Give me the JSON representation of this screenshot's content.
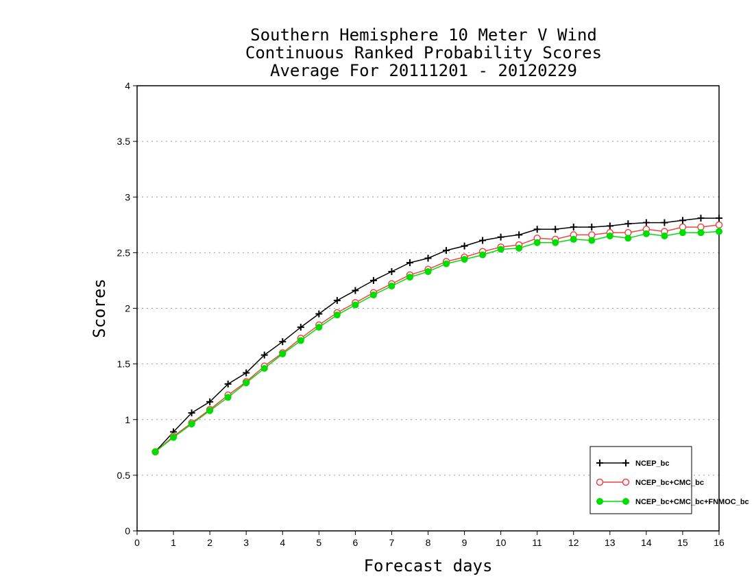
{
  "chart_data": {
    "type": "line",
    "title": [
      "Southern Hemisphere 10 Meter V Wind",
      "Continuous Ranked Probability Scores",
      "Average For 20111201 - 20120229"
    ],
    "xlabel": "Forecast days",
    "ylabel": "Scores",
    "xlim": [
      0,
      16
    ],
    "ylim": [
      0,
      4
    ],
    "xticks": [
      0,
      1,
      2,
      3,
      4,
      5,
      6,
      7,
      8,
      9,
      10,
      11,
      12,
      13,
      14,
      15,
      16
    ],
    "yticks": [
      0,
      0.5,
      1,
      1.5,
      2,
      2.5,
      3,
      3.5,
      4
    ],
    "ytick_labels": [
      "0",
      "0.5",
      "1",
      "1.5",
      "2",
      "2.5",
      "3",
      "3.5",
      "4"
    ],
    "grid": "horizontal dotted",
    "legend_position": "bottom-right",
    "x": [
      0.5,
      1,
      1.5,
      2,
      2.5,
      3,
      3.5,
      4,
      4.5,
      5,
      5.5,
      6,
      6.5,
      7,
      7.5,
      8,
      8.5,
      9,
      9.5,
      10,
      10.5,
      11,
      11.5,
      12,
      12.5,
      13,
      13.5,
      14,
      14.5,
      15,
      15.5,
      16
    ],
    "series": [
      {
        "name": "NCEP_bc",
        "color": "#000000",
        "marker": "plus",
        "values": [
          0.71,
          0.89,
          1.06,
          1.16,
          1.32,
          1.42,
          1.58,
          1.7,
          1.83,
          1.95,
          2.07,
          2.16,
          2.25,
          2.33,
          2.41,
          2.45,
          2.52,
          2.56,
          2.61,
          2.64,
          2.66,
          2.71,
          2.71,
          2.73,
          2.73,
          2.74,
          2.76,
          2.77,
          2.77,
          2.79,
          2.81,
          2.81
        ]
      },
      {
        "name": "NCEP_bc+CMC_bc",
        "color": "#ee4444",
        "marker": "open-circle",
        "values": [
          0.71,
          0.85,
          0.97,
          1.09,
          1.22,
          1.34,
          1.48,
          1.6,
          1.73,
          1.85,
          1.96,
          2.05,
          2.14,
          2.22,
          2.3,
          2.35,
          2.42,
          2.46,
          2.51,
          2.55,
          2.57,
          2.63,
          2.62,
          2.66,
          2.66,
          2.68,
          2.68,
          2.71,
          2.69,
          2.73,
          2.73,
          2.75
        ]
      },
      {
        "name": "NCEP_bc+CMC_bc+FNMOC_bc",
        "color": "#00dd00",
        "marker": "filled-circle",
        "values": [
          0.71,
          0.84,
          0.96,
          1.08,
          1.2,
          1.33,
          1.46,
          1.59,
          1.71,
          1.83,
          1.94,
          2.03,
          2.12,
          2.2,
          2.28,
          2.33,
          2.4,
          2.44,
          2.48,
          2.53,
          2.54,
          2.59,
          2.59,
          2.62,
          2.61,
          2.65,
          2.63,
          2.67,
          2.65,
          2.68,
          2.68,
          2.69
        ]
      }
    ]
  }
}
